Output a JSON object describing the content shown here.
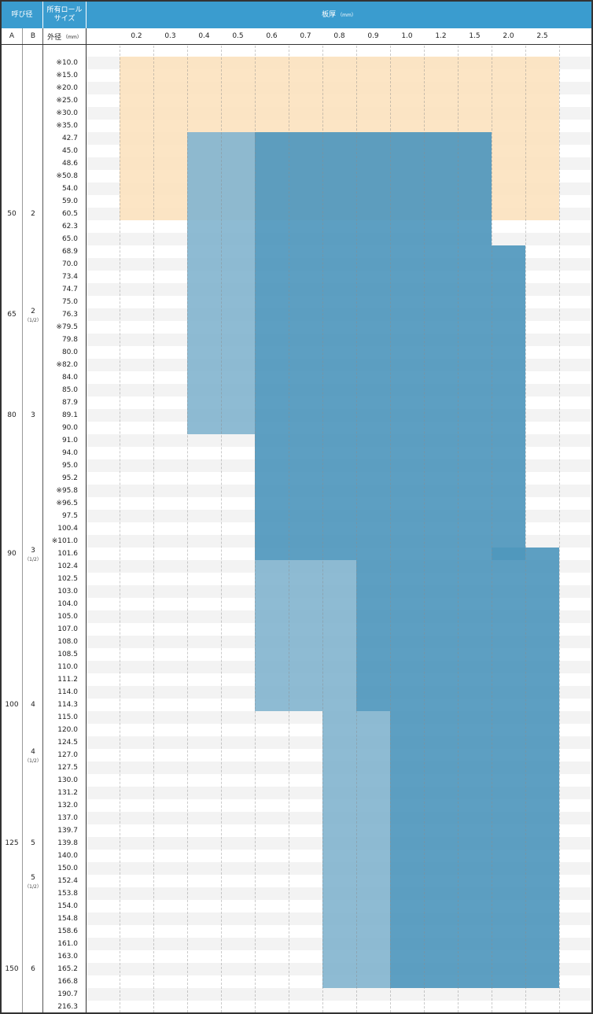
{
  "header": {
    "nominal_label": "呼び径",
    "roll_label_line1": "所有ロール",
    "roll_label_line2": "サイズ",
    "thickness_label": "板厚",
    "thickness_unit": "（mm）",
    "col_a": "A",
    "col_b": "B",
    "outer_label": "外径",
    "outer_unit": "（mm）"
  },
  "thicknesses": [
    "0.2",
    "0.3",
    "0.4",
    "0.5",
    "0.6",
    "0.7",
    "0.8",
    "0.9",
    "1.0",
    "1.2",
    "1.5",
    "2.0",
    "2.5"
  ],
  "sizes": [
    "※10.0",
    "※15.0",
    "※20.0",
    "※25.0",
    "※30.0",
    "※35.0",
    "42.7",
    "45.0",
    "48.6",
    "※50.8",
    "54.0",
    "59.0",
    "60.5",
    "62.3",
    "65.0",
    "68.9",
    "70.0",
    "73.4",
    "74.7",
    "75.0",
    "76.3",
    "※79.5",
    "79.8",
    "80.0",
    "※82.0",
    "84.0",
    "85.0",
    "87.9",
    "89.1",
    "90.0",
    "91.0",
    "94.0",
    "95.0",
    "95.2",
    "※95.8",
    "※96.5",
    "97.5",
    "100.4",
    "※101.0",
    "101.6",
    "102.4",
    "102.5",
    "103.0",
    "104.0",
    "105.0",
    "107.0",
    "108.0",
    "108.5",
    "110.0",
    "111.2",
    "114.0",
    "114.3",
    "115.0",
    "120.0",
    "124.5",
    "127.0",
    "127.5",
    "130.0",
    "131.2",
    "132.0",
    "137.0",
    "139.7",
    "139.8",
    "140.0",
    "150.0",
    "152.4",
    "153.8",
    "154.0",
    "154.8",
    "158.6",
    "161.0",
    "163.0",
    "165.2",
    "166.8",
    "190.7",
    "216.3"
  ],
  "nominal": [
    {
      "row": 12,
      "a": "50",
      "b": "2",
      "frac": ""
    },
    {
      "row": 20,
      "a": "65",
      "b": "2",
      "frac": "（1/2）"
    },
    {
      "row": 28,
      "a": "80",
      "b": "3",
      "frac": ""
    },
    {
      "row": 39,
      "a": "90",
      "b": "3",
      "frac": "（1/2）"
    },
    {
      "row": 51,
      "a": "100",
      "b": "4",
      "frac": ""
    },
    {
      "row": 55,
      "a": "",
      "b": "4",
      "frac": "（1/2）"
    },
    {
      "row": 62,
      "a": "125",
      "b": "5",
      "frac": ""
    },
    {
      "row": 65,
      "a": "",
      "b": "5",
      "frac": "（1/2）"
    },
    {
      "row": 72,
      "a": "150",
      "b": "6",
      "frac": ""
    }
  ],
  "colors": {
    "header_bg": "#3a9ccf",
    "peach": "#fbe1bb",
    "blue_dark": "#4f97bd",
    "blue_light": "#84b5cf",
    "stripe": "#f3f3f3"
  },
  "availability": [
    {
      "shade": "peach",
      "rows": [
        0,
        12
      ],
      "cols": [
        0,
        12
      ]
    },
    {
      "shade": "blue_light",
      "rows": [
        6,
        29
      ],
      "cols": [
        2,
        3
      ]
    },
    {
      "shade": "blue_dark",
      "rows": [
        6,
        14
      ],
      "cols": [
        4,
        10
      ]
    },
    {
      "shade": "blue_dark",
      "rows": [
        15,
        29
      ],
      "cols": [
        4,
        11
      ]
    },
    {
      "shade": "blue_dark",
      "rows": [
        30,
        39
      ],
      "cols": [
        4,
        11
      ]
    },
    {
      "shade": "blue_dark",
      "rows": [
        39,
        51
      ],
      "cols": [
        11,
        12
      ]
    },
    {
      "shade": "blue_light",
      "rows": [
        40,
        51
      ],
      "cols": [
        4,
        6
      ]
    },
    {
      "shade": "blue_dark",
      "rows": [
        40,
        51
      ],
      "cols": [
        7,
        10
      ]
    },
    {
      "shade": "blue_light",
      "rows": [
        52,
        73
      ],
      "cols": [
        6,
        7
      ]
    },
    {
      "shade": "blue_dark",
      "rows": [
        52,
        73
      ],
      "cols": [
        8,
        12
      ]
    }
  ]
}
